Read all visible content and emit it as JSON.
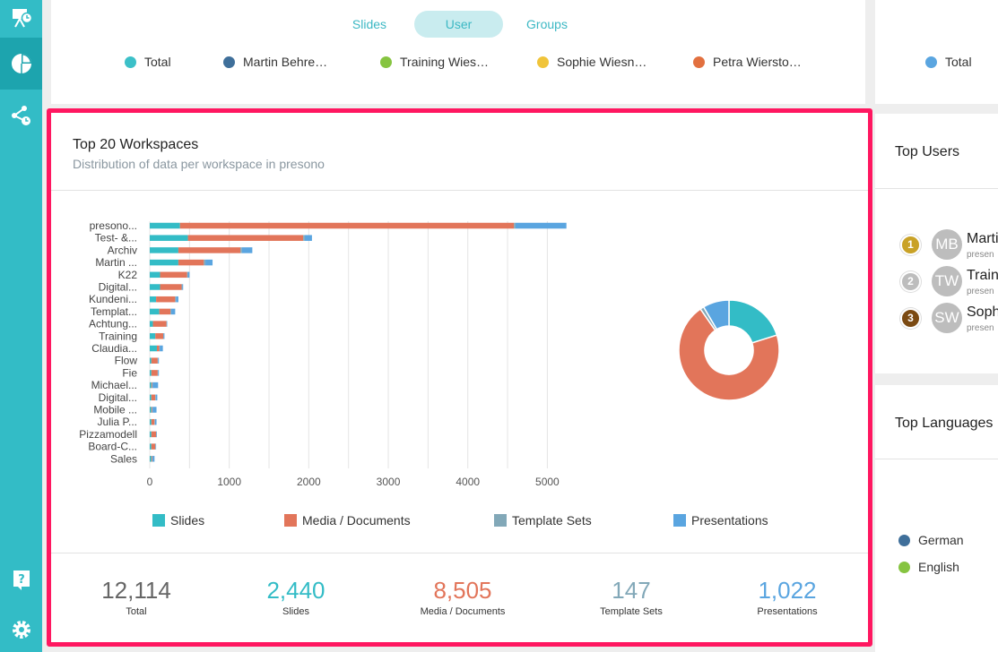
{
  "top_card": {
    "tabs": [
      "Slides",
      "User",
      "Groups"
    ],
    "active_tab": "User",
    "legend": [
      {
        "label": "Total",
        "color": "#3cc0c8"
      },
      {
        "label": "Martin Behre…",
        "color": "#3f6f9a"
      },
      {
        "label": "Training Wies…",
        "color": "#86c440"
      },
      {
        "label": "Sophie Wiesn…",
        "color": "#f0c43a"
      },
      {
        "label": "Petra Wiersto…",
        "color": "#e2703f"
      }
    ]
  },
  "top_right_card": {
    "legend": [
      {
        "label": "Total",
        "color": "#5aa5e0"
      }
    ]
  },
  "workspaces": {
    "title": "Top 20 Workspaces",
    "subtitle": "Distribution of data per workspace in presono",
    "legend": [
      {
        "label": "Slides",
        "color": "#33bcc6"
      },
      {
        "label": "Media / Documents",
        "color": "#e2755a"
      },
      {
        "label": "Template Sets",
        "color": "#82a8b8"
      },
      {
        "label": "Presentations",
        "color": "#5aa5e0"
      }
    ],
    "stats": [
      {
        "value": "12,114",
        "label": "Total",
        "color": "#666666"
      },
      {
        "value": "2,440",
        "label": "Slides",
        "color": "#33bcc6"
      },
      {
        "value": "8,505",
        "label": "Media / Documents",
        "color": "#e2755a"
      },
      {
        "value": "147",
        "label": "Template Sets",
        "color": "#82a8b8"
      },
      {
        "value": "1,022",
        "label": "Presentations",
        "color": "#5aa5e0"
      }
    ]
  },
  "chart_data": [
    {
      "type": "bar",
      "orientation": "horizontal",
      "stacked": true,
      "categories": [
        "presono...",
        "Test- &...",
        "Archiv",
        "Martin ...",
        "K22",
        "Digital...",
        "Kundeni...",
        "Templat...",
        "Achtung...",
        "Training",
        "Claudia...",
        "Flow",
        "Fie",
        "Michael...",
        "Digital...",
        "Mobile ...",
        "Julia P...",
        "Pizzamodell",
        "Board-C...",
        "Sales"
      ],
      "series": [
        {
          "name": "Slides",
          "values": [
            380,
            480,
            360,
            360,
            130,
            130,
            80,
            120,
            40,
            70,
            90,
            20,
            20,
            20,
            20,
            20,
            20,
            20,
            20,
            20
          ]
        },
        {
          "name": "Media / Documents",
          "values": [
            4200,
            1450,
            780,
            320,
            340,
            270,
            240,
            140,
            170,
            100,
            30,
            80,
            80,
            10,
            50,
            10,
            40,
            60,
            50,
            10
          ]
        },
        {
          "name": "Template Sets",
          "values": [
            20,
            20,
            20,
            20,
            10,
            10,
            10,
            10,
            5,
            5,
            5,
            5,
            5,
            5,
            5,
            5,
            5,
            5,
            5,
            5
          ]
        },
        {
          "name": "Presentations",
          "values": [
            640,
            90,
            130,
            90,
            20,
            10,
            30,
            50,
            5,
            10,
            40,
            10,
            10,
            70,
            20,
            50,
            20,
            5,
            5,
            25
          ]
        }
      ],
      "xticks": [
        "0",
        "1000",
        "2000",
        "3000",
        "4000",
        "5000"
      ],
      "xlim": [
        0,
        5300
      ],
      "grid": true
    },
    {
      "type": "pie",
      "donut": true,
      "labels": [
        "Slides",
        "Media / Documents",
        "Template Sets",
        "Presentations"
      ],
      "values": [
        2440,
        8505,
        147,
        1022
      ]
    }
  ],
  "top_users": {
    "title": "Top Users",
    "users": [
      {
        "rank": "1",
        "rank_color": "#c9a227",
        "initials": "MB",
        "name": "Marti",
        "sub": "presen"
      },
      {
        "rank": "2",
        "rank_color": "#bdbdbd",
        "initials": "TW",
        "name": "Train",
        "sub": "presen"
      },
      {
        "rank": "3",
        "rank_color": "#7b4a12",
        "initials": "SW",
        "name": "Soph",
        "sub": "presen"
      }
    ]
  },
  "top_languages": {
    "title": "Top Languages",
    "legend": [
      {
        "label": "German",
        "color": "#3f6f9a"
      },
      {
        "label": "English",
        "color": "#86c440"
      }
    ]
  },
  "rail": {
    "icons": [
      "presentation-stats-icon",
      "pie-chart-icon",
      "share-stats-icon",
      "help-icon",
      "settings-icon"
    ]
  }
}
